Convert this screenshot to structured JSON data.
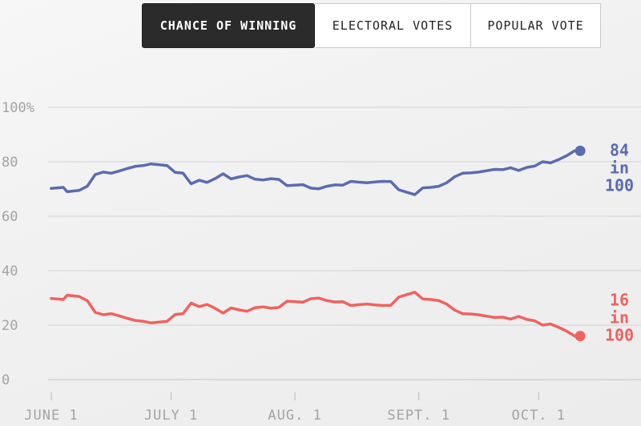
{
  "tabs": [
    {
      "label": "CHANCE OF WINNING",
      "active": true
    },
    {
      "label": "ELECTORAL VOTES",
      "active": false
    },
    {
      "label": "POPULAR VOTE",
      "active": false
    }
  ],
  "colors": {
    "blue": "#5b6bb0",
    "red": "#f0625e",
    "grid": "#d2d2d2",
    "tick": "#a3a3a3"
  },
  "chart_data": {
    "type": "line",
    "title": "",
    "xlabel": "",
    "ylabel": "",
    "ylim": [
      0,
      100
    ],
    "yticks": [
      0,
      20,
      40,
      60,
      80,
      100
    ],
    "ytick_labels": [
      "0",
      "20",
      "40",
      "60",
      "80",
      "100%"
    ],
    "xlim": [
      "2016-06-01",
      "2016-10-18"
    ],
    "xticks": [
      {
        "date": "2016-06-01",
        "label": "JUNE 1"
      },
      {
        "date": "2016-07-01",
        "label": "JULY 1"
      },
      {
        "date": "2016-08-01",
        "label": "AUG. 1"
      },
      {
        "date": "2016-09-01",
        "label": "SEPT. 1"
      },
      {
        "date": "2016-10-01",
        "label": "OCT. 1"
      }
    ],
    "grid": true,
    "dates": [
      "2016-06-01",
      "2016-06-04",
      "2016-06-05",
      "2016-06-08",
      "2016-06-10",
      "2016-06-12",
      "2016-06-14",
      "2016-06-16",
      "2016-06-18",
      "2016-06-20",
      "2016-06-22",
      "2016-06-24",
      "2016-06-26",
      "2016-06-28",
      "2016-06-30",
      "2016-07-02",
      "2016-07-04",
      "2016-07-06",
      "2016-07-08",
      "2016-07-10",
      "2016-07-12",
      "2016-07-14",
      "2016-07-16",
      "2016-07-18",
      "2016-07-20",
      "2016-07-22",
      "2016-07-24",
      "2016-07-26",
      "2016-07-28",
      "2016-07-30",
      "2016-08-01",
      "2016-08-03",
      "2016-08-05",
      "2016-08-07",
      "2016-08-09",
      "2016-08-11",
      "2016-08-13",
      "2016-08-15",
      "2016-08-17",
      "2016-08-19",
      "2016-08-21",
      "2016-08-23",
      "2016-08-25",
      "2016-08-27",
      "2016-08-29",
      "2016-08-31",
      "2016-09-02",
      "2016-09-04",
      "2016-09-06",
      "2016-09-08",
      "2016-09-10",
      "2016-09-12",
      "2016-09-14",
      "2016-09-16",
      "2016-09-18",
      "2016-09-20",
      "2016-09-22",
      "2016-09-24",
      "2016-09-26",
      "2016-09-28",
      "2016-09-30",
      "2016-10-02",
      "2016-10-04",
      "2016-10-06",
      "2016-10-08",
      "2016-10-10"
    ],
    "series": [
      {
        "color": "#5b6bb0",
        "values": [
          70.2,
          70.6,
          69,
          69.5,
          71,
          75.3,
          76.2,
          75.8,
          76.6,
          77.5,
          78.3,
          78.6,
          79.2,
          78.9,
          78.6,
          76.1,
          75.8,
          71.9,
          73.2,
          72.4,
          73.8,
          75.6,
          73.7,
          74.4,
          74.9,
          73.6,
          73.3,
          73.8,
          73.5,
          71.2,
          71.4,
          71.6,
          70.3,
          70.1,
          71,
          71.5,
          71.4,
          72.8,
          72.5,
          72.3,
          72.6,
          72.8,
          72.7,
          69.7,
          68.8,
          67.9,
          70.4,
          70.6,
          71,
          72.3,
          74.5,
          75.8,
          75.9,
          76.2,
          76.7,
          77.2,
          77.1,
          77.8,
          76.8,
          77.9,
          78.4,
          80,
          79.6,
          80.8,
          82.2,
          84
        ],
        "end_label": [
          "84",
          "in",
          "100"
        ]
      },
      {
        "color": "#f0625e",
        "values": [
          29.8,
          29.4,
          31,
          30.5,
          29,
          24.7,
          23.8,
          24.2,
          23.4,
          22.5,
          21.7,
          21.4,
          20.8,
          21.1,
          21.4,
          23.9,
          24.2,
          28.1,
          26.8,
          27.6,
          26.2,
          24.4,
          26.3,
          25.6,
          25.1,
          26.4,
          26.7,
          26.2,
          26.5,
          28.8,
          28.6,
          28.4,
          29.7,
          29.9,
          29,
          28.5,
          28.6,
          27.2,
          27.5,
          27.7,
          27.4,
          27.2,
          27.3,
          30.3,
          31.2,
          32.1,
          29.6,
          29.4,
          29,
          27.7,
          25.5,
          24.2,
          24.1,
          23.8,
          23.3,
          22.8,
          22.9,
          22.2,
          23.2,
          22.1,
          21.6,
          20,
          20.4,
          19.2,
          17.8,
          16
        ],
        "end_label": [
          "16",
          "in",
          "100"
        ]
      }
    ]
  }
}
